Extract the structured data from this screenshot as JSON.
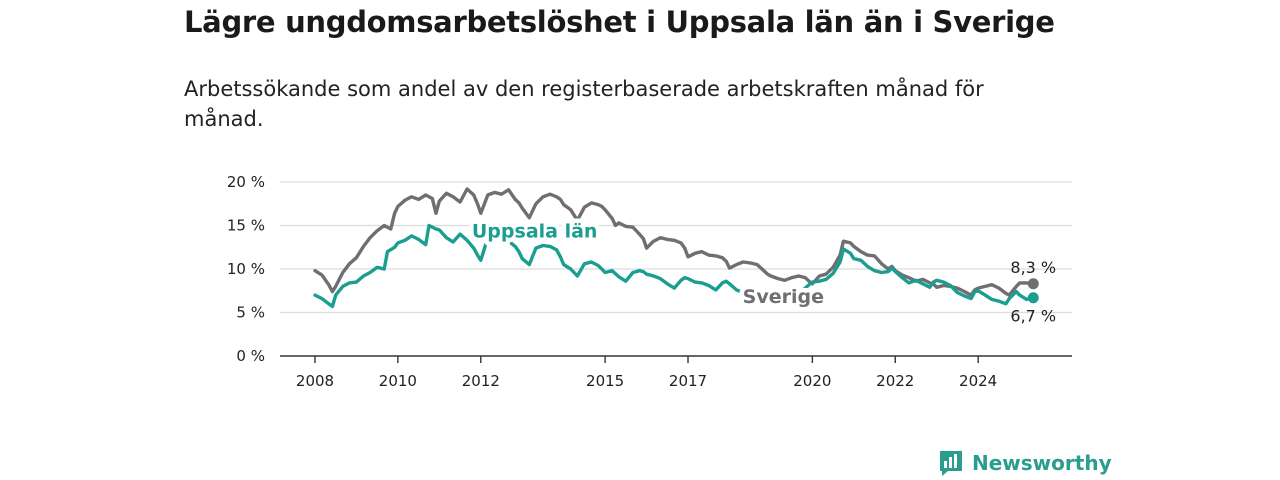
{
  "header": {
    "title": "Lägre ungdomsarbetslöshet i Uppsala län än i Sverige",
    "subtitle": "Arbetssökande som andel av den registerbaserade arbetskraften månad för månad."
  },
  "brand": {
    "name": "Newsworthy",
    "icon": "bar-chart-logo-icon",
    "color": "#2a9d8f"
  },
  "chart_data": {
    "type": "line",
    "title": "Lägre ungdomsarbetslöshet i Uppsala län än i Sverige",
    "subtitle": "Arbetssökande som andel av den registerbaserade arbetskraften månad för månad.",
    "xlabel": "",
    "ylabel": "",
    "xlim": [
      2008.0,
      2025.42
    ],
    "ylim": [
      0,
      20
    ],
    "y_ticks": [
      "0 %",
      "5 %",
      "10 %",
      "15 %",
      "20 %"
    ],
    "x_ticks": [
      "2008",
      "2010",
      "2012",
      "2015",
      "2017",
      "2020",
      "2022",
      "2024"
    ],
    "grid": true,
    "series": [
      {
        "name": "Sverige",
        "color": "#6e6e73",
        "end_label": "8,3 %",
        "points": [
          [
            2008.0,
            9.8
          ],
          [
            2008.17,
            9.3
          ],
          [
            2008.33,
            8.2
          ],
          [
            2008.42,
            7.4
          ],
          [
            2008.5,
            8.0
          ],
          [
            2008.67,
            9.6
          ],
          [
            2008.83,
            10.6
          ],
          [
            2009.0,
            11.3
          ],
          [
            2009.17,
            12.6
          ],
          [
            2009.33,
            13.6
          ],
          [
            2009.5,
            14.4
          ],
          [
            2009.67,
            15.0
          ],
          [
            2009.83,
            14.6
          ],
          [
            2009.92,
            16.4
          ],
          [
            2010.0,
            17.2
          ],
          [
            2010.17,
            17.9
          ],
          [
            2010.33,
            18.3
          ],
          [
            2010.5,
            18.0
          ],
          [
            2010.67,
            18.5
          ],
          [
            2010.83,
            18.1
          ],
          [
            2010.92,
            16.4
          ],
          [
            2011.0,
            17.8
          ],
          [
            2011.17,
            18.7
          ],
          [
            2011.33,
            18.3
          ],
          [
            2011.5,
            17.7
          ],
          [
            2011.67,
            19.2
          ],
          [
            2011.83,
            18.5
          ],
          [
            2011.92,
            17.5
          ],
          [
            2012.0,
            16.4
          ],
          [
            2012.17,
            18.5
          ],
          [
            2012.33,
            18.8
          ],
          [
            2012.5,
            18.6
          ],
          [
            2012.67,
            19.1
          ],
          [
            2012.83,
            18.0
          ],
          [
            2012.92,
            17.6
          ],
          [
            2013.0,
            17.0
          ],
          [
            2013.17,
            15.9
          ],
          [
            2013.33,
            17.5
          ],
          [
            2013.5,
            18.3
          ],
          [
            2013.67,
            18.6
          ],
          [
            2013.83,
            18.3
          ],
          [
            2013.92,
            18.0
          ],
          [
            2014.0,
            17.4
          ],
          [
            2014.17,
            16.8
          ],
          [
            2014.33,
            15.6
          ],
          [
            2014.5,
            17.1
          ],
          [
            2014.67,
            17.6
          ],
          [
            2014.83,
            17.4
          ],
          [
            2014.92,
            17.2
          ],
          [
            2015.0,
            16.8
          ],
          [
            2015.17,
            15.8
          ],
          [
            2015.25,
            15.0
          ],
          [
            2015.33,
            15.3
          ],
          [
            2015.5,
            14.9
          ],
          [
            2015.67,
            14.8
          ],
          [
            2015.83,
            14.0
          ],
          [
            2015.92,
            13.5
          ],
          [
            2016.0,
            12.4
          ],
          [
            2016.17,
            13.2
          ],
          [
            2016.33,
            13.6
          ],
          [
            2016.5,
            13.4
          ],
          [
            2016.67,
            13.3
          ],
          [
            2016.83,
            13.0
          ],
          [
            2016.92,
            12.4
          ],
          [
            2017.0,
            11.4
          ],
          [
            2017.17,
            11.8
          ],
          [
            2017.33,
            12.0
          ],
          [
            2017.5,
            11.6
          ],
          [
            2017.67,
            11.5
          ],
          [
            2017.83,
            11.3
          ],
          [
            2017.92,
            10.9
          ],
          [
            2018.0,
            10.1
          ],
          [
            2018.17,
            10.5
          ],
          [
            2018.33,
            10.8
          ],
          [
            2018.5,
            10.7
          ],
          [
            2018.67,
            10.5
          ],
          [
            2018.83,
            9.8
          ],
          [
            2018.92,
            9.4
          ],
          [
            2019.0,
            9.2
          ],
          [
            2019.17,
            8.9
          ],
          [
            2019.33,
            8.7
          ],
          [
            2019.5,
            9.0
          ],
          [
            2019.67,
            9.2
          ],
          [
            2019.83,
            9.0
          ],
          [
            2019.92,
            8.6
          ],
          [
            2020.0,
            8.3
          ],
          [
            2020.17,
            9.2
          ],
          [
            2020.33,
            9.4
          ],
          [
            2020.5,
            10.2
          ],
          [
            2020.67,
            11.6
          ],
          [
            2020.75,
            13.2
          ],
          [
            2020.92,
            13.0
          ],
          [
            2021.0,
            12.6
          ],
          [
            2021.17,
            12.0
          ],
          [
            2021.33,
            11.6
          ],
          [
            2021.5,
            11.5
          ],
          [
            2021.67,
            10.6
          ],
          [
            2021.83,
            10.0
          ],
          [
            2021.92,
            10.3
          ],
          [
            2022.0,
            9.8
          ],
          [
            2022.17,
            9.3
          ],
          [
            2022.33,
            9.0
          ],
          [
            2022.5,
            8.6
          ],
          [
            2022.67,
            8.8
          ],
          [
            2022.83,
            8.4
          ],
          [
            2022.92,
            8.3
          ],
          [
            2023.0,
            7.9
          ],
          [
            2023.17,
            8.1
          ],
          [
            2023.33,
            8.0
          ],
          [
            2023.5,
            7.8
          ],
          [
            2023.67,
            7.4
          ],
          [
            2023.83,
            7.0
          ],
          [
            2023.92,
            7.6
          ],
          [
            2024.0,
            7.8
          ],
          [
            2024.17,
            8.0
          ],
          [
            2024.33,
            8.2
          ],
          [
            2024.5,
            7.8
          ],
          [
            2024.67,
            7.2
          ],
          [
            2024.75,
            7.0
          ],
          [
            2024.92,
            8.0
          ],
          [
            2025.0,
            8.4
          ],
          [
            2025.17,
            8.4
          ],
          [
            2025.33,
            8.3
          ]
        ]
      },
      {
        "name": "Uppsala län",
        "color": "#1a9e8f",
        "end_label": "6,7 %",
        "points": [
          [
            2008.0,
            7.0
          ],
          [
            2008.17,
            6.6
          ],
          [
            2008.33,
            6.0
          ],
          [
            2008.42,
            5.7
          ],
          [
            2008.5,
            7.0
          ],
          [
            2008.67,
            8.0
          ],
          [
            2008.83,
            8.4
          ],
          [
            2009.0,
            8.5
          ],
          [
            2009.17,
            9.2
          ],
          [
            2009.33,
            9.6
          ],
          [
            2009.5,
            10.2
          ],
          [
            2009.67,
            10.0
          ],
          [
            2009.75,
            12.0
          ],
          [
            2009.92,
            12.5
          ],
          [
            2010.0,
            13.0
          ],
          [
            2010.17,
            13.3
          ],
          [
            2010.33,
            13.8
          ],
          [
            2010.5,
            13.4
          ],
          [
            2010.67,
            12.8
          ],
          [
            2010.75,
            15.0
          ],
          [
            2010.92,
            14.6
          ],
          [
            2011.0,
            14.5
          ],
          [
            2011.17,
            13.6
          ],
          [
            2011.33,
            13.1
          ],
          [
            2011.5,
            14.0
          ],
          [
            2011.67,
            13.3
          ],
          [
            2011.83,
            12.4
          ],
          [
            2011.92,
            11.6
          ],
          [
            2012.0,
            11.0
          ],
          [
            2012.17,
            13.6
          ],
          [
            2012.33,
            13.9
          ],
          [
            2012.5,
            13.6
          ],
          [
            2012.67,
            13.2
          ],
          [
            2012.83,
            12.6
          ],
          [
            2012.92,
            12.0
          ],
          [
            2013.0,
            11.2
          ],
          [
            2013.17,
            10.5
          ],
          [
            2013.33,
            12.4
          ],
          [
            2013.5,
            12.7
          ],
          [
            2013.67,
            12.6
          ],
          [
            2013.83,
            12.2
          ],
          [
            2013.92,
            11.4
          ],
          [
            2014.0,
            10.5
          ],
          [
            2014.17,
            10.0
          ],
          [
            2014.33,
            9.2
          ],
          [
            2014.5,
            10.6
          ],
          [
            2014.67,
            10.8
          ],
          [
            2014.83,
            10.4
          ],
          [
            2014.92,
            10.0
          ],
          [
            2015.0,
            9.6
          ],
          [
            2015.17,
            9.8
          ],
          [
            2015.33,
            9.1
          ],
          [
            2015.5,
            8.6
          ],
          [
            2015.67,
            9.6
          ],
          [
            2015.83,
            9.8
          ],
          [
            2015.92,
            9.7
          ],
          [
            2016.0,
            9.4
          ],
          [
            2016.17,
            9.2
          ],
          [
            2016.33,
            8.9
          ],
          [
            2016.5,
            8.3
          ],
          [
            2016.67,
            7.8
          ],
          [
            2016.83,
            8.7
          ],
          [
            2016.92,
            9.0
          ],
          [
            2017.0,
            8.9
          ],
          [
            2017.17,
            8.5
          ],
          [
            2017.33,
            8.4
          ],
          [
            2017.5,
            8.1
          ],
          [
            2017.67,
            7.6
          ],
          [
            2017.83,
            8.4
          ],
          [
            2017.92,
            8.6
          ],
          [
            2018.0,
            8.3
          ],
          [
            2018.17,
            7.6
          ],
          [
            2018.33,
            7.3
          ],
          [
            2018.5,
            7.2
          ],
          [
            2018.67,
            7.4
          ],
          [
            2018.83,
            7.0
          ],
          [
            2018.92,
            6.5
          ],
          [
            2019.0,
            6.8
          ],
          [
            2019.17,
            6.4
          ],
          [
            2019.33,
            6.1
          ],
          [
            2019.5,
            7.5
          ],
          [
            2019.67,
            7.3
          ],
          [
            2019.83,
            7.8
          ],
          [
            2019.92,
            8.2
          ],
          [
            2020.0,
            8.5
          ],
          [
            2020.17,
            8.6
          ],
          [
            2020.33,
            8.8
          ],
          [
            2020.5,
            9.5
          ],
          [
            2020.67,
            10.8
          ],
          [
            2020.75,
            12.3
          ],
          [
            2020.92,
            11.8
          ],
          [
            2021.0,
            11.2
          ],
          [
            2021.17,
            11.0
          ],
          [
            2021.33,
            10.3
          ],
          [
            2021.5,
            9.8
          ],
          [
            2021.67,
            9.6
          ],
          [
            2021.83,
            9.7
          ],
          [
            2021.92,
            10.1
          ],
          [
            2022.0,
            9.7
          ],
          [
            2022.17,
            9.0
          ],
          [
            2022.33,
            8.4
          ],
          [
            2022.5,
            8.7
          ],
          [
            2022.67,
            8.3
          ],
          [
            2022.83,
            7.9
          ],
          [
            2022.92,
            8.5
          ],
          [
            2023.0,
            8.7
          ],
          [
            2023.17,
            8.5
          ],
          [
            2023.33,
            8.1
          ],
          [
            2023.5,
            7.3
          ],
          [
            2023.67,
            6.9
          ],
          [
            2023.83,
            6.6
          ],
          [
            2023.92,
            7.4
          ],
          [
            2024.0,
            7.5
          ],
          [
            2024.17,
            7.0
          ],
          [
            2024.33,
            6.5
          ],
          [
            2024.5,
            6.3
          ],
          [
            2024.67,
            6.0
          ],
          [
            2024.75,
            6.6
          ],
          [
            2024.92,
            7.4
          ],
          [
            2025.0,
            7.0
          ],
          [
            2025.17,
            6.5
          ],
          [
            2025.33,
            6.7
          ]
        ]
      }
    ]
  }
}
